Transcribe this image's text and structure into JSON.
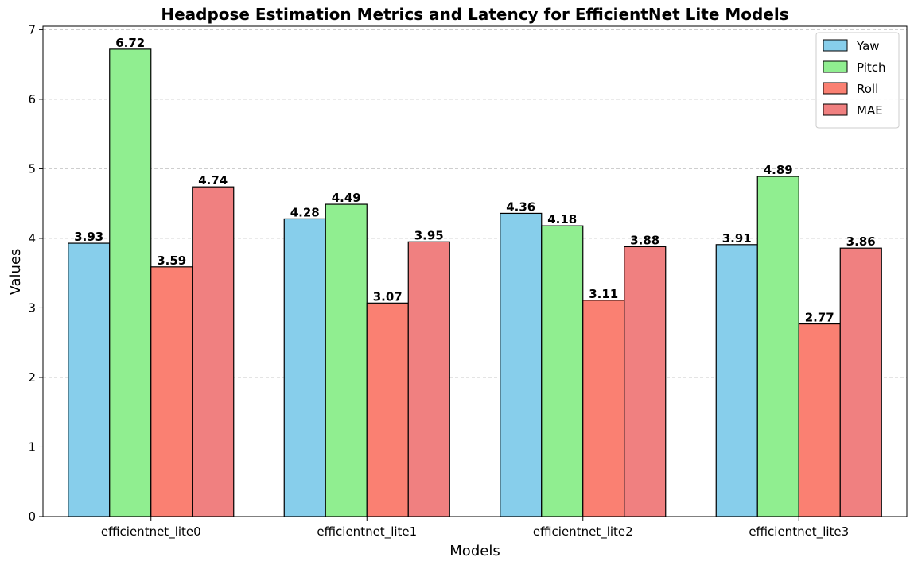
{
  "chart_data": {
    "type": "bar",
    "title": "Headpose Estimation Metrics and Latency for EfficientNet Lite Models",
    "xlabel": "Models",
    "ylabel": "Values",
    "categories": [
      "efficientnet_lite0",
      "efficientnet_lite1",
      "efficientnet_lite2",
      "efficientnet_lite3"
    ],
    "series": [
      {
        "name": "Yaw",
        "values": [
          3.93,
          4.28,
          4.36,
          3.91
        ],
        "color": "#87ceeb"
      },
      {
        "name": "Pitch",
        "values": [
          6.72,
          4.49,
          4.18,
          4.89
        ],
        "color": "#90ee90"
      },
      {
        "name": "Roll",
        "values": [
          3.59,
          3.07,
          3.11,
          2.77
        ],
        "color": "#fa8072"
      },
      {
        "name": "MAE",
        "values": [
          4.74,
          3.95,
          3.88,
          3.86
        ],
        "color": "#f08080"
      }
    ],
    "ylim": [
      0,
      7.05
    ],
    "yticks": [
      0,
      1,
      2,
      3,
      4,
      5,
      6,
      7
    ],
    "grid": "y-dashed",
    "legend_position": "top-right",
    "data_labels": true
  }
}
